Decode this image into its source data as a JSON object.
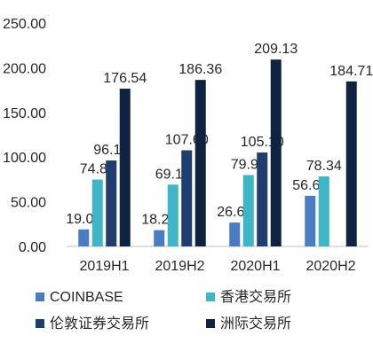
{
  "chart_data": {
    "type": "bar",
    "categories": [
      "2019H1",
      "2019H2",
      "2020H1",
      "2020H2"
    ],
    "ylim": [
      0,
      250
    ],
    "yticks": [
      "0.00",
      "50.00",
      "100.00",
      "150.00",
      "200.00",
      "250.00"
    ],
    "grid": false,
    "legend_position": "bottom",
    "series": [
      {
        "name": "COINBASE",
        "color": "#4a7cc4",
        "values": [
          19.04,
          18.2,
          26.69,
          56.66
        ],
        "labels": [
          "19.04",
          "18.20",
          "26.69",
          "56.66"
        ]
      },
      {
        "name": "香港交易所",
        "color": "#3fb6c6",
        "values": [
          74.87,
          69.18,
          79.9,
          78.34
        ],
        "labels": [
          "74.87",
          "69.18",
          "79.90",
          "78.34"
        ]
      },
      {
        "name": "伦敦证券交易所",
        "color": "#1f3d6e",
        "values": [
          96.17,
          107.6,
          105.1,
          null
        ],
        "labels": [
          "96.17",
          "107.60",
          "105.10",
          ""
        ]
      },
      {
        "name": "洲际交易所",
        "color": "#0f2240",
        "values": [
          176.54,
          186.36,
          209.13,
          184.71
        ],
        "labels": [
          "176.54",
          "186.36",
          "209.13",
          "184.71"
        ]
      }
    ]
  }
}
